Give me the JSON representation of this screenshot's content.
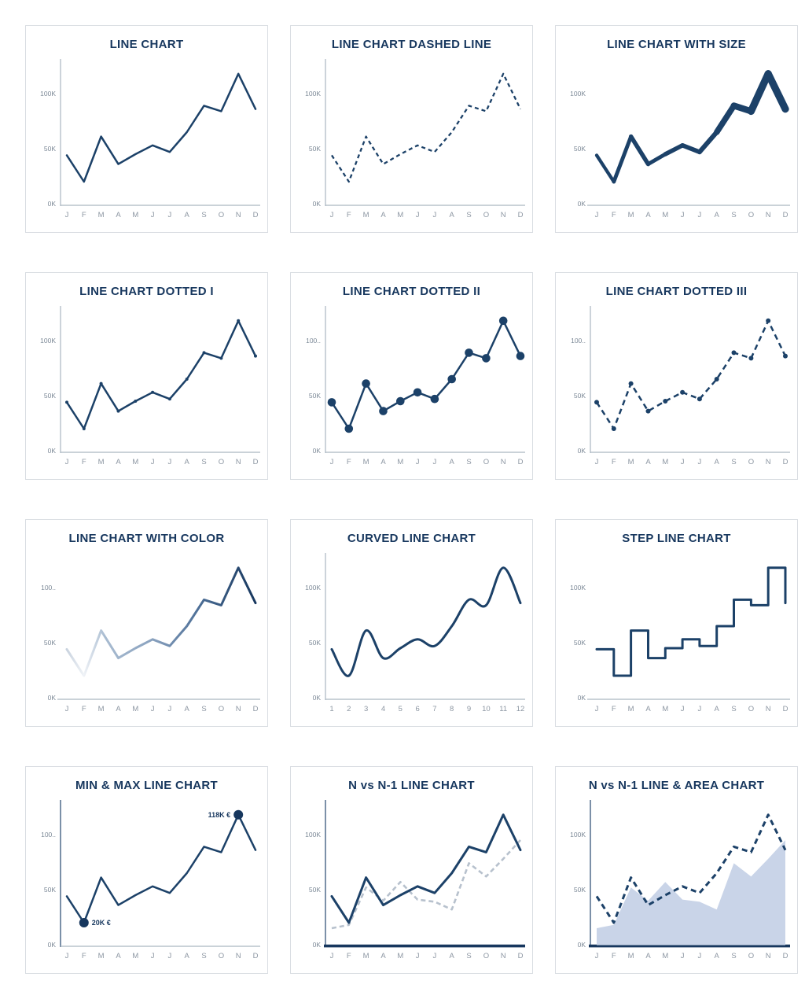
{
  "colors": {
    "navy": "#17375e",
    "line_navy": "#1c4168",
    "axis_gray": "#aab6c1",
    "axis_navy": "#24466e",
    "tick_text": "#7b8896",
    "month_text": "#8c96a2",
    "prev_dash_gray": "#b7c1cd",
    "area_fill": "#c9d4e8",
    "gradient_light": "#f0f3f7",
    "card_border": "#d9dde2",
    "background": "#ffffff"
  },
  "chart_data": {
    "shared": {
      "categories_months": [
        "J",
        "F",
        "M",
        "A",
        "M",
        "J",
        "J",
        "A",
        "S",
        "O",
        "N",
        "D"
      ],
      "categories_numeric": [
        "1",
        "2",
        "3",
        "4",
        "5",
        "6",
        "7",
        "8",
        "9",
        "10",
        "11",
        "12"
      ],
      "series_n": [
        44,
        20,
        61,
        36,
        45,
        53,
        47,
        65,
        89,
        84,
        118,
        86
      ],
      "series_n_minus_1": [
        15,
        18,
        52,
        40,
        57,
        41,
        39,
        32,
        74,
        62,
        78,
        95
      ],
      "y_ticks": [
        "0K",
        "50K",
        "100K"
      ],
      "ylim": [
        0,
        130
      ],
      "grid": "off",
      "legend": "none"
    },
    "charts": [
      {
        "type": "line",
        "title": "LINE CHART",
        "categories": "months",
        "series": [
          "n"
        ],
        "y_tick_labels": [
          "0K",
          "50K",
          "100K"
        ],
        "axes": "xy",
        "baseline": "thin"
      },
      {
        "type": "line-dashed",
        "title": "LINE CHART DASHED LINE",
        "categories": "months",
        "series": [
          "n"
        ],
        "y_tick_labels": [
          "0K",
          "50K",
          "100K"
        ],
        "axes": "xy",
        "baseline": "thin"
      },
      {
        "type": "line-size",
        "title": "LINE CHART WITH SIZE",
        "categories": "months",
        "series": [
          "n"
        ],
        "y_tick_labels": [
          "0K",
          "50K",
          "100K"
        ],
        "axes": "x",
        "baseline": "thin"
      },
      {
        "type": "line-markers-small",
        "title": "LINE CHART DOTTED I",
        "categories": "months",
        "series": [
          "n"
        ],
        "y_tick_labels": [
          "0K",
          "50K",
          "100K"
        ],
        "axes": "xy",
        "baseline": "thin"
      },
      {
        "type": "line-markers-large",
        "title": "LINE CHART DOTTED II",
        "categories": "months",
        "series": [
          "n"
        ],
        "y_tick_labels": [
          "0K",
          "50K",
          "100.."
        ],
        "axes": "xy",
        "baseline": "thin"
      },
      {
        "type": "line-dashdot-markers",
        "title": "LINE CHART DOTTED III",
        "categories": "months",
        "series": [
          "n"
        ],
        "y_tick_labels": [
          "0K",
          "50K",
          "100.."
        ],
        "axes": "xy",
        "baseline": "thin"
      },
      {
        "type": "line-gradient",
        "title": "LINE CHART WITH COLOR",
        "categories": "months",
        "series": [
          "n"
        ],
        "y_tick_labels": [
          "0K",
          "50K",
          "100.."
        ],
        "axes": "x",
        "baseline": "thin"
      },
      {
        "type": "curve",
        "title": "CURVED LINE CHART",
        "categories": "numeric",
        "series": [
          "n"
        ],
        "y_tick_labels": [
          "0K",
          "50K",
          "100K"
        ],
        "axes": "xy",
        "baseline": "thin"
      },
      {
        "type": "step",
        "title": "STEP LINE CHART",
        "categories": "months",
        "series": [
          "n"
        ],
        "y_tick_labels": [
          "0K",
          "50K",
          "100K"
        ],
        "axes": "x",
        "baseline": "thin"
      },
      {
        "type": "line-minmax",
        "title": "MIN & MAX LINE CHART",
        "categories": "months",
        "series": [
          "n"
        ],
        "y_tick_labels": [
          "0K",
          "50K",
          "100.."
        ],
        "axes": "xy",
        "baseline": "thin",
        "axis_navy": true,
        "annotations": [
          {
            "index": 10,
            "label": "118K €",
            "side": "left"
          },
          {
            "index": 1,
            "label": "20K €",
            "side": "right"
          }
        ]
      },
      {
        "type": "two-lines",
        "title": "N vs N-1 LINE CHART",
        "categories": "months",
        "series": [
          "n",
          "n_minus_1"
        ],
        "y_tick_labels": [
          "0K",
          "50K",
          "100K"
        ],
        "axes": "xy",
        "baseline": "thick",
        "axis_navy": true
      },
      {
        "type": "line-area",
        "title": "N vs N-1 LINE & AREA CHART",
        "categories": "months",
        "series": [
          "n",
          "n_minus_1"
        ],
        "y_tick_labels": [
          "0K",
          "50K",
          "100K"
        ],
        "axes": "xy",
        "baseline": "thick",
        "axis_navy": true
      }
    ]
  }
}
